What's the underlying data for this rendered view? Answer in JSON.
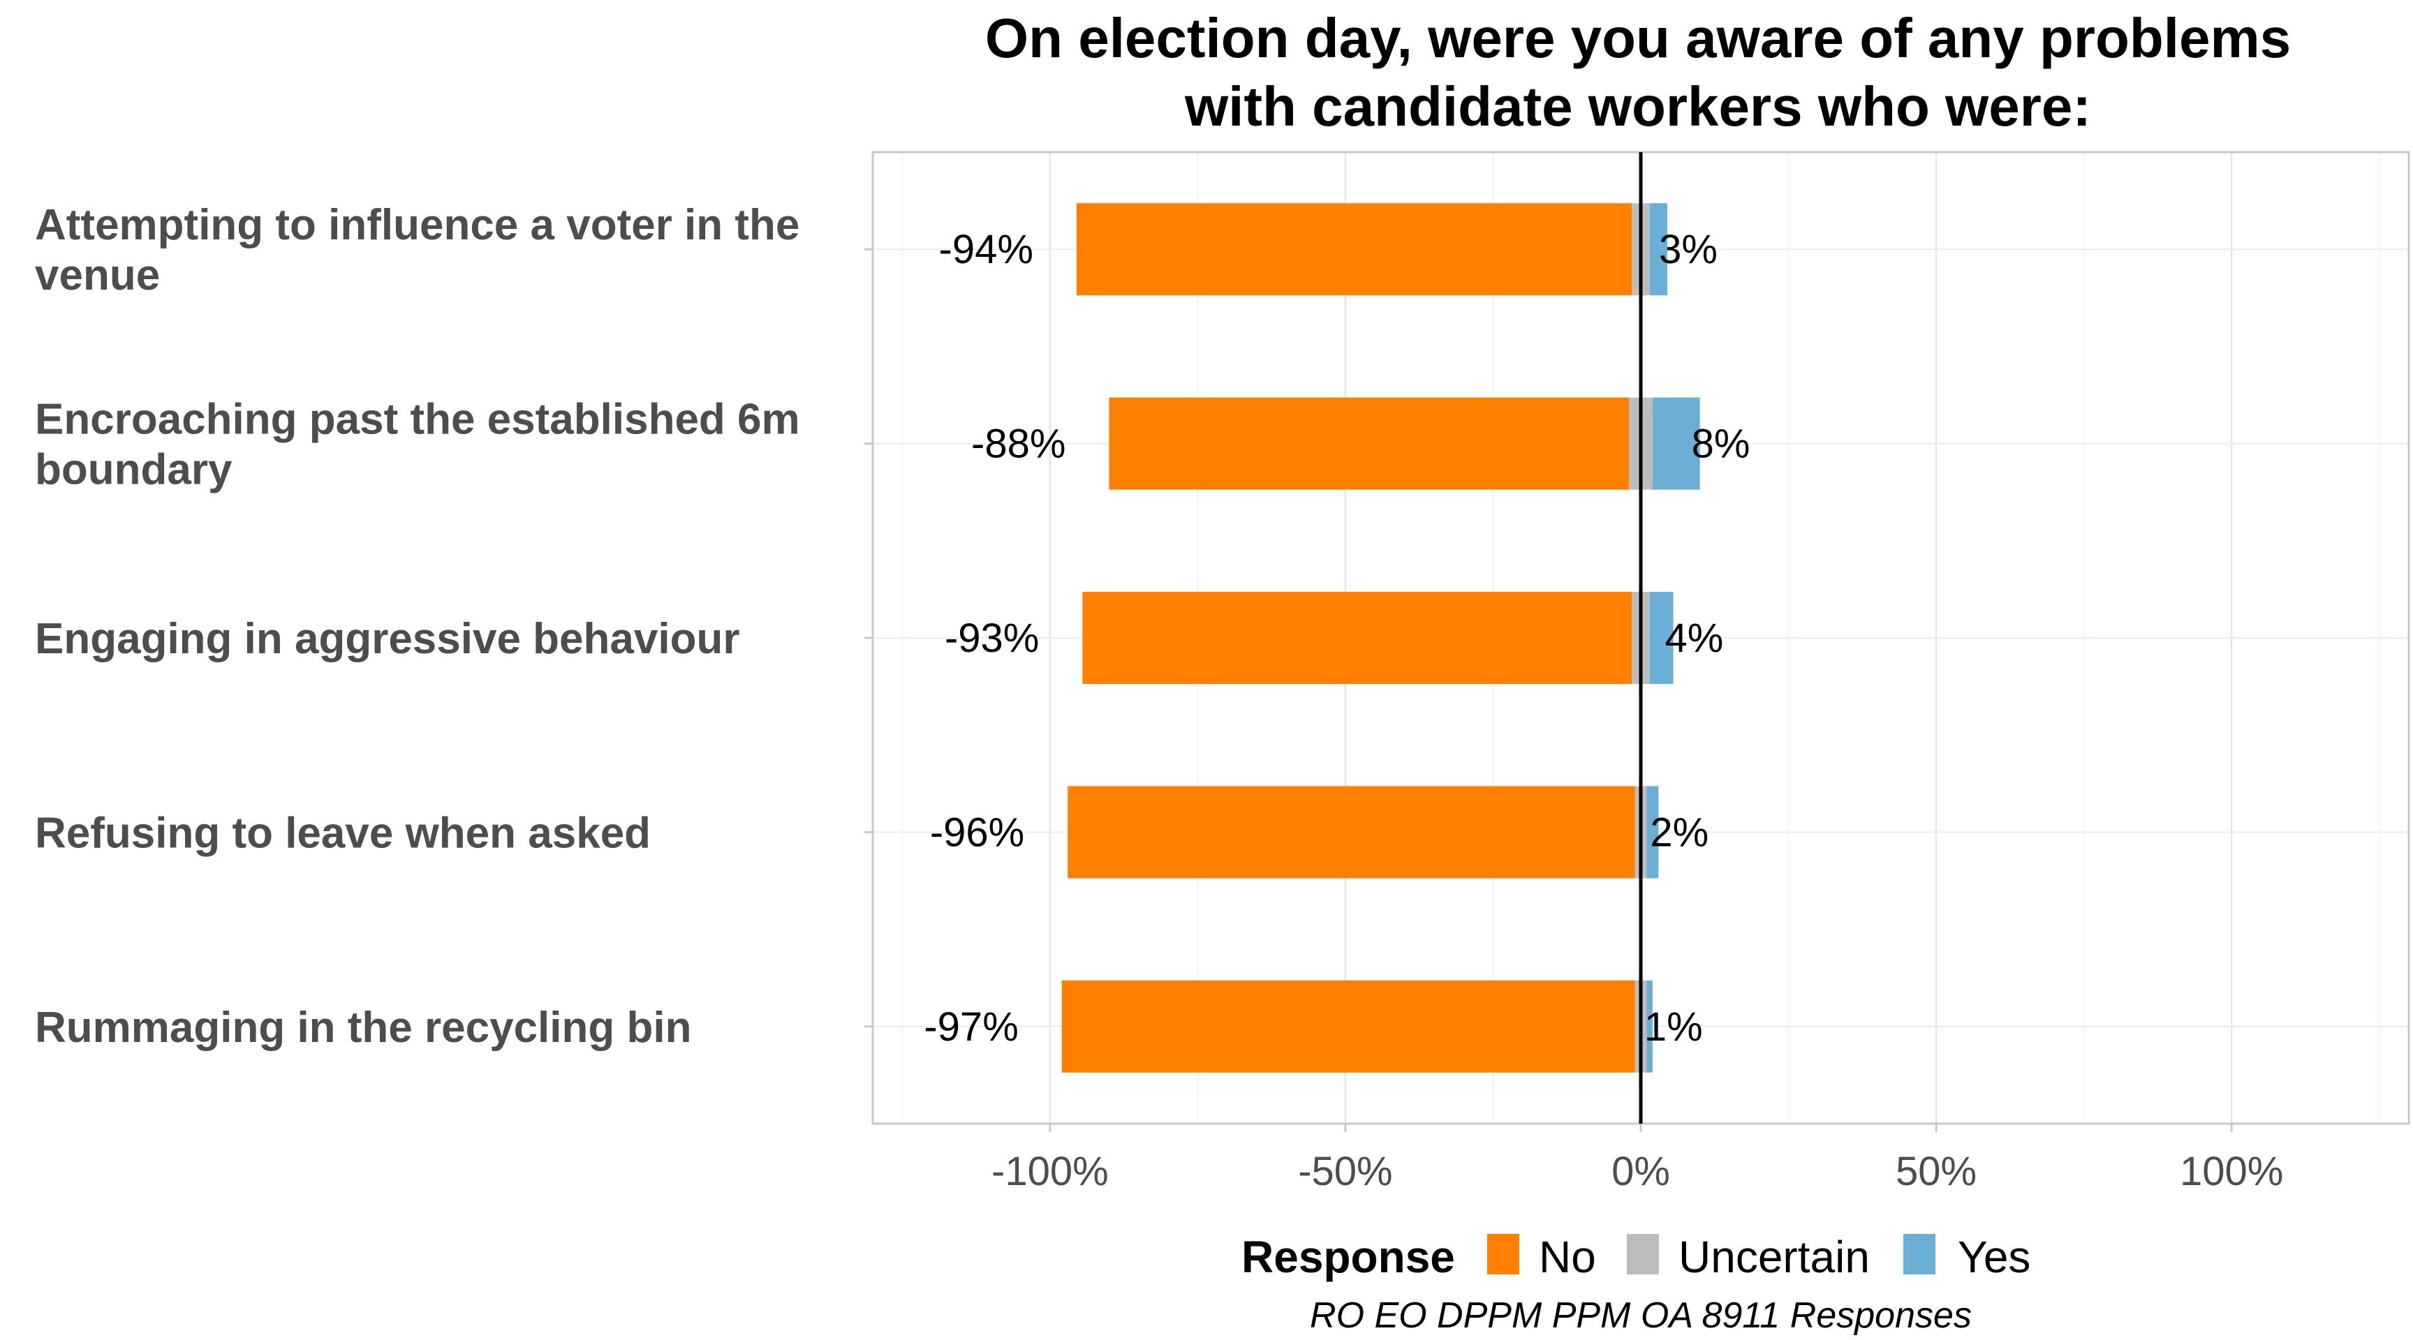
{
  "chart_data": {
    "type": "bar",
    "orientation": "horizontal",
    "stacked": "diverging",
    "title": "On election day, were you aware of any problems with candidate workers who were:",
    "title_lines": [
      "On election day, were you aware of any problems",
      "with candidate workers who were:"
    ],
    "categories": [
      "Attempting to influence a voter in the venue",
      "Encroaching past the established 6m boundary",
      "Engaging in aggressive behaviour",
      "Refusing to leave when asked",
      "Rummaging in the recycling bin"
    ],
    "category_lines": [
      [
        "Attempting to influence a voter in the",
        "venue"
      ],
      [
        "Encroaching past the established 6m",
        "boundary"
      ],
      [
        "Engaging in aggressive behaviour"
      ],
      [
        "Refusing to leave when asked"
      ],
      [
        "Rummaging in the recycling bin"
      ]
    ],
    "series": [
      {
        "name": "No",
        "color": "#ff7f00",
        "values": [
          -94,
          -88,
          -93,
          -96,
          -97
        ]
      },
      {
        "name": "Uncertain",
        "color": "#bdbdbd",
        "values": [
          3,
          4,
          3,
          2,
          2
        ]
      },
      {
        "name": "Yes",
        "color": "#6baed6",
        "values": [
          3,
          8,
          4,
          2,
          1
        ]
      }
    ],
    "data_labels": {
      "no": [
        "-94%",
        "-88%",
        "-93%",
        "-96%",
        "-97%"
      ],
      "yes": [
        "3%",
        "8%",
        "4%",
        "2%",
        "1%"
      ]
    },
    "xlim": [
      -130,
      130
    ],
    "x_ticks": [
      -100,
      -50,
      0,
      50,
      100
    ],
    "x_tick_labels": [
      "-100%",
      "-50%",
      "0%",
      "50%",
      "100%"
    ],
    "grid": true,
    "legend": {
      "title": "Response",
      "position": "bottom",
      "entries": [
        "No",
        "Uncertain",
        "Yes"
      ]
    },
    "caption": "RO EO DPPM PPM OA 8911 Responses"
  }
}
